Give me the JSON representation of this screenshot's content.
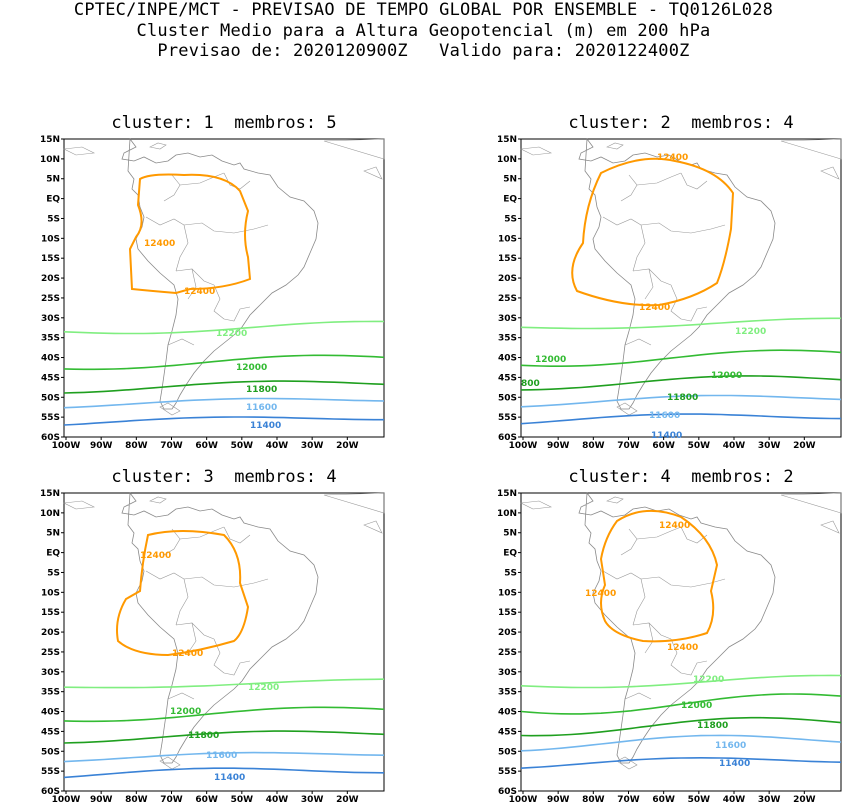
{
  "header": {
    "line1": "CPTEC/INPE/MCT - PREVISAO DE TEMPO GLOBAL POR ENSEMBLE - TQ0126L028",
    "line2": "Cluster Medio para a Altura Geopotencial (m) em 200 hPa",
    "line3": "Previsao de: 2020120900Z   Valido para: 2020122400Z"
  },
  "axes": {
    "lat_ticks": [
      "15N",
      "10N",
      "5N",
      "EQ",
      "5S",
      "10S",
      "15S",
      "20S",
      "25S",
      "30S",
      "35S",
      "40S",
      "45S",
      "50S",
      "55S",
      "60S"
    ],
    "lon_ticks": [
      "100W",
      "90W",
      "80W",
      "70W",
      "60W",
      "50W",
      "40W",
      "30W",
      "20W"
    ]
  },
  "contour_colors": {
    "12400": "#ff9900",
    "12200": "#80ee80",
    "12000": "#33bb33",
    "11800": "#1f9f1f",
    "11600": "#73b7ee",
    "11400": "#3a82d6"
  },
  "panels": [
    {
      "title": "cluster: 1  membros: 5",
      "labels": {
        "12400": [
          "12400",
          "12400"
        ],
        "12200": "12200",
        "12000": "12000",
        "11800": "11800",
        "11600": "11600",
        "11400": "11400"
      }
    },
    {
      "title": "cluster: 2  membros: 4",
      "labels": {
        "12400": [
          "12400",
          "12400"
        ],
        "12200": "12200",
        "12000": "12000",
        "12000b": "12000",
        "11800": "11800",
        "11800b": "800",
        "11600": "11600",
        "11400": "11400"
      }
    },
    {
      "title": "cluster: 3  membros: 4",
      "labels": {
        "12400": [
          "12400",
          "12400"
        ],
        "12200": "12200",
        "12000": "12000",
        "11800": "11800",
        "11600": "11600",
        "11400": "11400"
      }
    },
    {
      "title": "cluster: 4  membros: 2",
      "labels": {
        "12400": [
          "12400",
          "12400",
          "12400"
        ],
        "12200": "12200",
        "12000": "12000",
        "11800": "11800",
        "11600": "11600",
        "11400": "11400"
      }
    }
  ]
}
